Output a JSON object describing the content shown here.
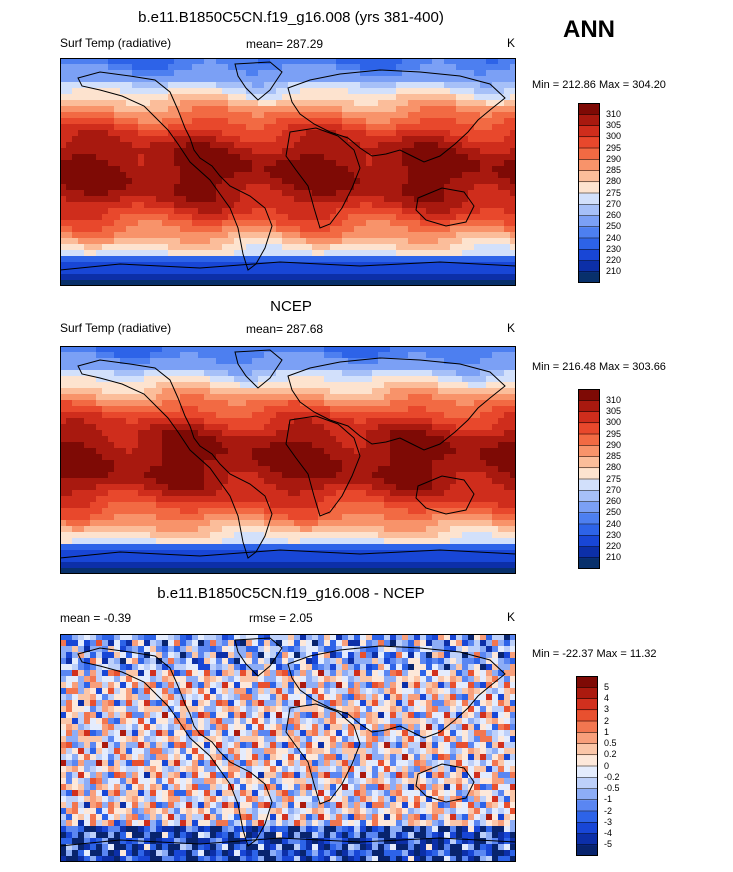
{
  "season": "ANN",
  "colors": {
    "abs_scale": [
      "#08306b",
      "#0c2fa8",
      "#1846d6",
      "#2d63e8",
      "#4d7ff0",
      "#7ba0f5",
      "#a6c0f8",
      "#d2e0fb",
      "#fde3cf",
      "#fbbd9a",
      "#f8936a",
      "#f26a43",
      "#e8482c",
      "#cf2d1c",
      "#a8190f",
      "#7e0a05"
    ],
    "diff_scale": [
      "#08246e",
      "#0c2fa8",
      "#1846d6",
      "#2d63e8",
      "#5a86f2",
      "#8dadf6",
      "#bdd0fa",
      "#e4ecfd",
      "#fde8da",
      "#fbc6a8",
      "#f89f7b",
      "#f27650",
      "#e8502f",
      "#d1301e",
      "#ab1a0f",
      "#7e0a05"
    ]
  },
  "panels": [
    {
      "title": "b.e11.B1850C5CN.f19_g16.008 (yrs 381-400)",
      "left_label": "Surf Temp (radiative)",
      "center_label": "mean= 287.29",
      "units": "K",
      "range_text": "Min = 212.86 Max = 304.20",
      "colorbar_labels": [
        "310",
        "305",
        "300",
        "295",
        "290",
        "285",
        "280",
        "275",
        "270",
        "260",
        "250",
        "240",
        "230",
        "220",
        "210"
      ]
    },
    {
      "title": "NCEP",
      "left_label": "Surf Temp (radiative)",
      "center_label": "mean= 287.68",
      "units": "K",
      "range_text": "Min = 216.48 Max = 303.66",
      "colorbar_labels": [
        "310",
        "305",
        "300",
        "295",
        "290",
        "285",
        "280",
        "275",
        "270",
        "260",
        "250",
        "240",
        "230",
        "220",
        "210"
      ]
    },
    {
      "title": "b.e11.B1850C5CN.f19_g16.008 - NCEP",
      "left_label": "mean =  -0.39",
      "center_label": "rmse =   2.05",
      "units": "K",
      "range_text": "Min = -22.37 Max =  11.32",
      "colorbar_labels": [
        "5",
        "4",
        "3",
        "2",
        "1",
        "0.5",
        "0.2",
        "0",
        "-0.2",
        "-0.5",
        "-1",
        "-2",
        "-3",
        "-4",
        "-5"
      ]
    }
  ]
}
